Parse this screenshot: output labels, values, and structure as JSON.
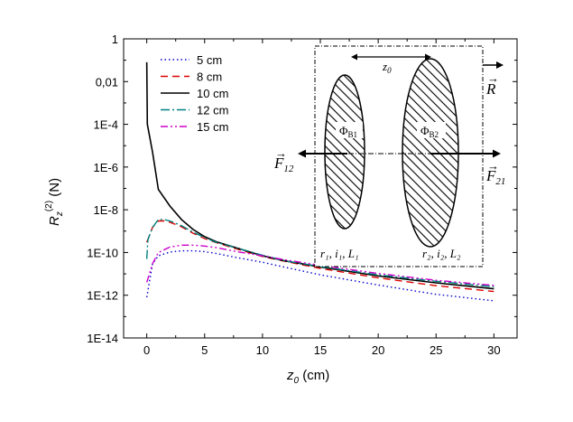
{
  "chart_data": {
    "type": "line",
    "xlabel": "z",
    "xlabel_sub": "0",
    "xlabel_unit": " (cm)",
    "ylabel": "R",
    "ylabel_sub": "z",
    "ylabel_sup": "(2)",
    "ylabel_unit": " (N)",
    "xlim": [
      -2,
      32
    ],
    "ylim": [
      1e-14,
      1
    ],
    "yscale": "log",
    "x_ticks": [
      0,
      5,
      10,
      15,
      20,
      25,
      30
    ],
    "x_tick_labels": [
      "0",
      "5",
      "10",
      "15",
      "20",
      "25",
      "30"
    ],
    "y_ticks": [
      1e-14,
      1e-12,
      1e-10,
      1e-08,
      1e-06,
      0.0001,
      0.01,
      1
    ],
    "y_tick_labels": [
      "1E-14",
      "1E-12",
      "1E-10",
      "1E-8",
      "1E-6",
      "1E-4",
      "0,01",
      "1"
    ],
    "legend_position": "top-left",
    "series": [
      {
        "name": "5 cm",
        "color": "#0000cc",
        "dash": "1.5,3",
        "points": [
          [
            0,
            8e-13
          ],
          [
            0.5,
            3e-11
          ],
          [
            1,
            7e-11
          ],
          [
            2,
            1.05e-10
          ],
          [
            3,
            1.2e-10
          ],
          [
            4,
            1.2e-10
          ],
          [
            5,
            1.1e-10
          ],
          [
            6,
            9e-11
          ],
          [
            8,
            5.5e-11
          ],
          [
            10,
            3.5e-11
          ],
          [
            12,
            2e-11
          ],
          [
            15,
            9e-12
          ],
          [
            20,
            3e-12
          ],
          [
            25,
            1.1e-12
          ],
          [
            30,
            5.5e-13
          ]
        ]
      },
      {
        "name": "8 cm",
        "color": "#dd0000",
        "dash": "8,5",
        "points": [
          [
            0,
            3e-10
          ],
          [
            0.5,
            1.5e-09
          ],
          [
            1,
            3e-09
          ],
          [
            1.5,
            3e-09
          ],
          [
            2,
            2.6e-09
          ],
          [
            3,
            1.6e-09
          ],
          [
            4,
            8e-10
          ],
          [
            5,
            4.5e-10
          ],
          [
            6,
            2.9e-10
          ],
          [
            8,
            1.35e-10
          ],
          [
            10,
            6.5e-11
          ],
          [
            12,
            3.8e-11
          ],
          [
            15,
            1.8e-11
          ],
          [
            20,
            6.5e-12
          ],
          [
            25,
            2.8e-12
          ],
          [
            30,
            1.5e-12
          ]
        ]
      },
      {
        "name": "10 cm",
        "color": "#000000",
        "dash": "",
        "points": [
          [
            0,
            0.08
          ],
          [
            0.05,
            0.0001
          ],
          [
            0.5,
            5e-06
          ],
          [
            1,
            9e-08
          ],
          [
            2,
            1.5e-08
          ],
          [
            3,
            3.5e-09
          ],
          [
            4,
            1.2e-09
          ],
          [
            5,
            5.5e-10
          ],
          [
            6,
            3.2e-10
          ],
          [
            8,
            1.5e-10
          ],
          [
            10,
            7e-11
          ],
          [
            12,
            4e-11
          ],
          [
            15,
            2.1e-11
          ],
          [
            20,
            8e-12
          ],
          [
            25,
            3.8e-12
          ],
          [
            30,
            2e-12
          ]
        ]
      },
      {
        "name": "12 cm",
        "color": "#008080",
        "dash": "10,3,2,3",
        "points": [
          [
            0,
            5e-11
          ],
          [
            0.1,
            4e-10
          ],
          [
            0.5,
            1.5e-09
          ],
          [
            1,
            3.5e-09
          ],
          [
            1.5,
            3.5e-09
          ],
          [
            2,
            3e-09
          ],
          [
            3,
            1.8e-09
          ],
          [
            4,
            9e-10
          ],
          [
            5,
            5e-10
          ],
          [
            6,
            3e-10
          ],
          [
            8,
            1.5e-10
          ],
          [
            10,
            7.5e-11
          ],
          [
            12,
            4e-11
          ],
          [
            15,
            2.2e-11
          ],
          [
            20,
            9e-12
          ],
          [
            25,
            4.5e-12
          ],
          [
            30,
            2.5e-12
          ]
        ]
      },
      {
        "name": "15 cm",
        "color": "#cc00cc",
        "dash": "8,3,2,3,2,3",
        "points": [
          [
            0,
            4e-12
          ],
          [
            0.5,
            3e-11
          ],
          [
            1,
            1e-10
          ],
          [
            2,
            1.8e-10
          ],
          [
            3,
            2.2e-10
          ],
          [
            4,
            2.2e-10
          ],
          [
            5,
            2e-10
          ],
          [
            6,
            1.7e-10
          ],
          [
            8,
            1.05e-10
          ],
          [
            10,
            7e-11
          ],
          [
            12,
            4.5e-11
          ],
          [
            15,
            2.5e-11
          ],
          [
            20,
            1.05e-11
          ],
          [
            25,
            5e-12
          ],
          [
            30,
            2.9e-12
          ]
        ]
      }
    ]
  },
  "inset": {
    "z0": "z",
    "z0_sub": "0",
    "phi1": "Φ",
    "phi1_sub": "B1",
    "phi2": "Φ",
    "phi2_sub": "B2",
    "F12": "F",
    "F12_sub": "12",
    "F21": "F",
    "F21_sub": "21",
    "R": "R",
    "coil1": "r₁, i₁, L₁",
    "coil2": "r₂, i₂, L₂",
    "arrow_glyph": "→"
  }
}
